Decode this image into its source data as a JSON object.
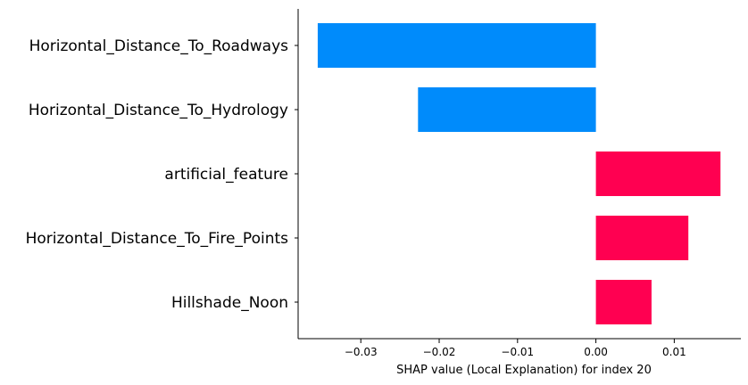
{
  "chart_data": {
    "type": "bar",
    "orientation": "horizontal",
    "title": "",
    "xlabel": "SHAP value (Local Explanation) for index 20",
    "ylabel": "",
    "categories": [
      "Horizontal_Distance_To_Roadways",
      "Horizontal_Distance_To_Hydrology",
      "artificial_feature",
      "Horizontal_Distance_To_Fire_Points",
      "Hillshade_Noon"
    ],
    "values": [
      -0.0355,
      -0.0227,
      0.0159,
      0.0118,
      0.0071
    ],
    "xlim": [
      -0.038,
      0.0185
    ],
    "xticks": [
      -0.03,
      -0.02,
      -0.01,
      0.0,
      0.01
    ],
    "xtick_labels": [
      "−0.03",
      "−0.02",
      "−0.01",
      "0.00",
      "0.01"
    ],
    "colors": {
      "negative": "#008bfb",
      "positive": "#ff0051",
      "axis": "#000000"
    },
    "grid": false,
    "legend": "none"
  }
}
